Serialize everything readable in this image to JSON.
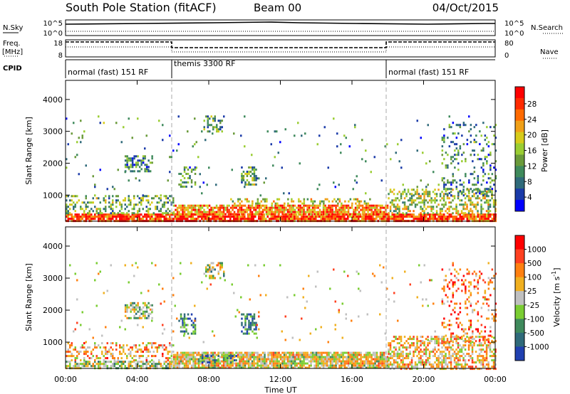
{
  "header": {
    "title": "South Pole Station (fitACF)",
    "beam": "Beam 00",
    "date": "04/Oct/2015"
  },
  "strips": {
    "noise": {
      "left_label": "N.Sky",
      "right_label": "N.Search",
      "left_ticks": [
        "10^5",
        "10^0"
      ],
      "right_ticks": [
        "10^5",
        "10^0"
      ]
    },
    "freq": {
      "left_label": "Freq.",
      "left_unit": "[MHz]",
      "right_label": "Nave",
      "left_ticks": [
        "18",
        "8"
      ],
      "right_ticks": [
        "80",
        "0"
      ]
    },
    "cpid": {
      "label": "CPID",
      "segments": [
        "normal (fast) 151 RF",
        "themis 3300 RF",
        "normal (fast) 151 RF"
      ]
    }
  },
  "chart_data": [
    {
      "type": "heatmap",
      "quantity": "power",
      "xlabel": "Time UT",
      "ylabel": "Slant Range [km]",
      "x_ticks": [
        "00:00",
        "04:00",
        "08:00",
        "12:00",
        "16:00",
        "20:00",
        "00:00"
      ],
      "x_range_hours": [
        0,
        24
      ],
      "y_ticks": [
        1000,
        2000,
        3000,
        4000
      ],
      "ylim": [
        180,
        4600
      ],
      "mode_change_hours": [
        6,
        18
      ],
      "colorbar": {
        "label": "Power [dB]",
        "ticks": [
          "28",
          "24",
          "20",
          "16",
          "12",
          "8",
          "4"
        ],
        "range": [
          0,
          30
        ],
        "colors": [
          "#0000ff",
          "#1a3aa8",
          "#2f6a7a",
          "#3f8a5c",
          "#6a9a3a",
          "#9acd32",
          "#d7cb1a",
          "#f0a018",
          "#ff6a00",
          "#ff2a00",
          "#ff0000"
        ]
      },
      "clusters": [
        {
          "t0": 0,
          "t1": 24,
          "r0": 200,
          "r1": 420,
          "level": 0.85,
          "density": 0.85
        },
        {
          "t0": 0,
          "t1": 6,
          "r0": 420,
          "r1": 1000,
          "level": 0.4,
          "density": 0.35
        },
        {
          "t0": 6,
          "t1": 18,
          "r0": 420,
          "r1": 700,
          "level": 0.75,
          "density": 0.8
        },
        {
          "t0": 9,
          "t1": 17,
          "r0": 700,
          "r1": 900,
          "level": 0.55,
          "density": 0.35
        },
        {
          "t0": 18,
          "t1": 24,
          "r0": 420,
          "r1": 1200,
          "level": 0.5,
          "density": 0.45
        },
        {
          "t0": 3.3,
          "t1": 4.8,
          "r0": 1750,
          "r1": 2250,
          "level": 0.3,
          "density": 0.55
        },
        {
          "t0": 6.3,
          "t1": 7.2,
          "r0": 1250,
          "r1": 1900,
          "level": 0.3,
          "density": 0.35
        },
        {
          "t0": 9.8,
          "t1": 10.6,
          "r0": 1300,
          "r1": 1900,
          "level": 0.4,
          "density": 0.5
        },
        {
          "t0": 7.7,
          "t1": 8.8,
          "r0": 3000,
          "r1": 3500,
          "level": 0.35,
          "density": 0.4
        },
        {
          "t0": 21,
          "t1": 24,
          "r0": 1000,
          "r1": 3300,
          "level": 0.3,
          "density": 0.18
        },
        {
          "t0": 0,
          "t1": 24,
          "r0": 1000,
          "r1": 3500,
          "level": 0.3,
          "density": 0.02
        }
      ]
    },
    {
      "type": "heatmap",
      "quantity": "velocity",
      "xlabel": "Time UT",
      "ylabel": "Slant Range [km]",
      "x_ticks": [
        "00:00",
        "04:00",
        "08:00",
        "12:00",
        "16:00",
        "20:00",
        "00:00"
      ],
      "x_range_hours": [
        0,
        24
      ],
      "y_ticks": [
        1000,
        2000,
        3000,
        4000
      ],
      "ylim": [
        180,
        4600
      ],
      "colorbar": {
        "label": "Velocity [m s",
        "label_superscript": "-1",
        "label_suffix": "]",
        "ticks": [
          "1000",
          "500",
          "100",
          "25",
          "-25",
          "-100",
          "-500",
          "-1000"
        ],
        "colors": [
          "#2040b0",
          "#2f6a7a",
          "#3f8a5c",
          "#7acd32",
          "#c0c0c0",
          "#f0b020",
          "#ff8010",
          "#ff4020",
          "#ff0000"
        ]
      },
      "clusters": [
        {
          "t0": 0,
          "t1": 6,
          "r0": 200,
          "r1": 420,
          "level": 0.45,
          "density": 0.7
        },
        {
          "t0": 6,
          "t1": 18,
          "r0": 200,
          "r1": 700,
          "level": 0.55,
          "density": 0.85
        },
        {
          "t0": 18,
          "t1": 24,
          "r0": 200,
          "r1": 1200,
          "level": 0.6,
          "density": 0.55
        },
        {
          "t0": 0,
          "t1": 6,
          "r0": 420,
          "r1": 1000,
          "level": 0.65,
          "density": 0.35
        },
        {
          "t0": 3.3,
          "t1": 4.8,
          "r0": 1750,
          "r1": 2250,
          "level": 0.45,
          "density": 0.55
        },
        {
          "t0": 6.3,
          "t1": 7.2,
          "r0": 1250,
          "r1": 1900,
          "level": 0.2,
          "density": 0.4
        },
        {
          "t0": 9.8,
          "t1": 10.6,
          "r0": 1300,
          "r1": 1900,
          "level": 0.2,
          "density": 0.55
        },
        {
          "t0": 7.7,
          "t1": 8.8,
          "r0": 3000,
          "r1": 3500,
          "level": 0.45,
          "density": 0.4
        },
        {
          "t0": 7.5,
          "t1": 9.5,
          "r0": 350,
          "r1": 600,
          "level": 0.25,
          "density": 0.45
        },
        {
          "t0": 21,
          "t1": 24,
          "r0": 1000,
          "r1": 3300,
          "level": 0.75,
          "density": 0.18
        },
        {
          "t0": 0,
          "t1": 24,
          "r0": 1000,
          "r1": 3500,
          "level": 0.6,
          "density": 0.02
        }
      ]
    }
  ]
}
